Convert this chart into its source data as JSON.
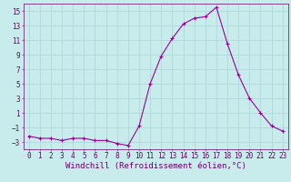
{
  "x": [
    0,
    1,
    2,
    3,
    4,
    5,
    6,
    7,
    8,
    9,
    10,
    11,
    12,
    13,
    14,
    15,
    16,
    17,
    18,
    19,
    20,
    21,
    22,
    23
  ],
  "y": [
    -2.2,
    -2.5,
    -2.5,
    -2.8,
    -2.5,
    -2.5,
    -2.8,
    -2.8,
    -3.2,
    -3.5,
    -0.8,
    5.0,
    8.8,
    11.2,
    13.2,
    14.0,
    14.2,
    15.5,
    10.5,
    6.2,
    3.0,
    1.0,
    -0.8,
    -1.5
  ],
  "line_color": "#990099",
  "marker": "+",
  "marker_size": 3,
  "bg_color": "#c8ecec",
  "grid_color": "#b0d8d8",
  "xlabel": "Windchill (Refroidissement éolien,°C)",
  "xlabel_color": "#660066",
  "xlabel_fontsize": 6.5,
  "tick_color": "#660066",
  "tick_fontsize": 5.5,
  "ylim": [
    -4,
    16
  ],
  "xlim": [
    -0.5,
    23.5
  ],
  "yticks": [
    -3,
    -1,
    1,
    3,
    5,
    7,
    9,
    11,
    13,
    15
  ],
  "xticks": [
    0,
    1,
    2,
    3,
    4,
    5,
    6,
    7,
    8,
    9,
    10,
    11,
    12,
    13,
    14,
    15,
    16,
    17,
    18,
    19,
    20,
    21,
    22,
    23
  ]
}
